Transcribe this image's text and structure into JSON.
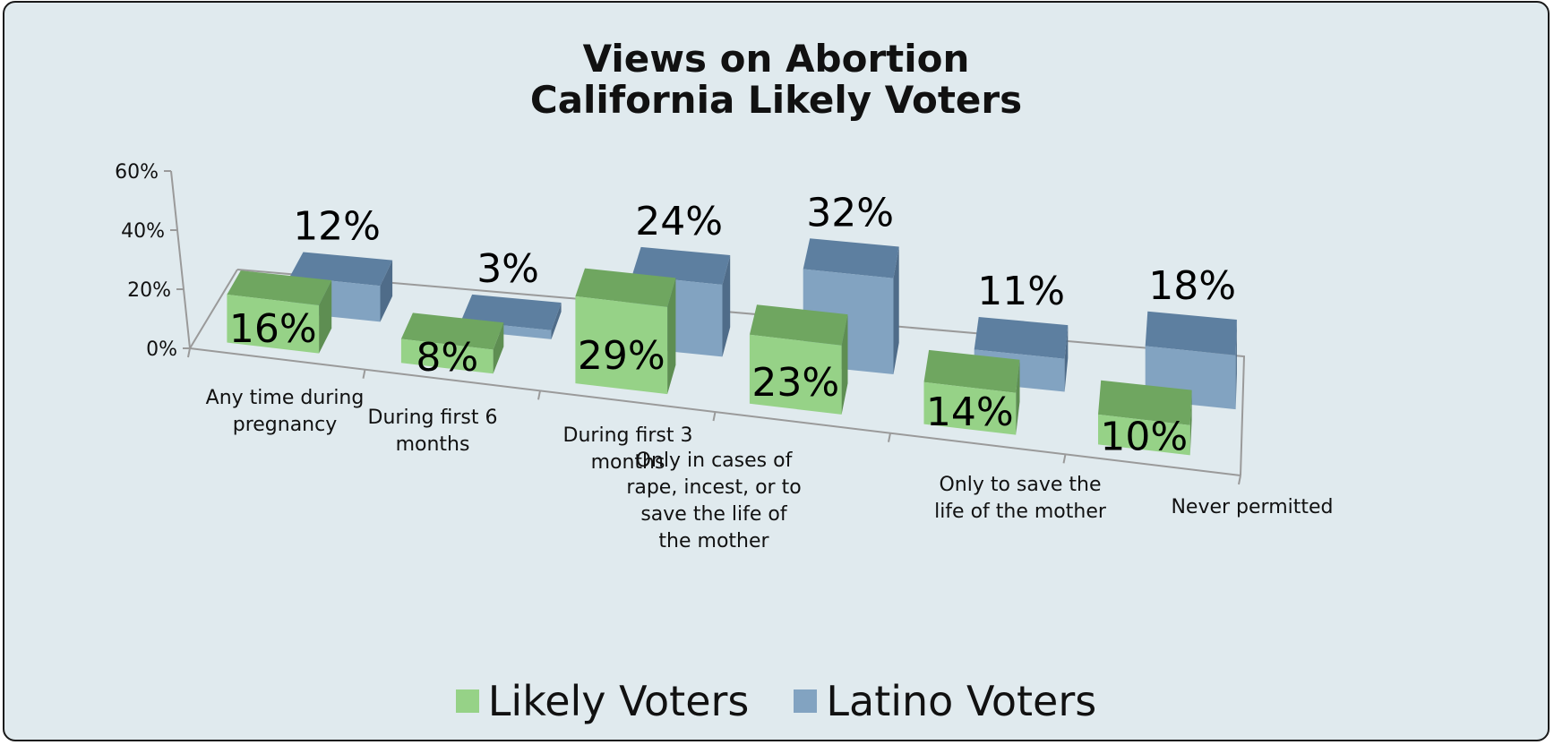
{
  "chart_data": {
    "type": "bar",
    "title_lines": [
      "Views on Abortion",
      "California Likely Voters"
    ],
    "categories": [
      [
        "Any time during",
        "pregnancy"
      ],
      [
        "During first 6",
        "months"
      ],
      [
        "During first 3",
        "months"
      ],
      [
        "Only in cases of",
        "rape, incest, or to",
        "save the life of",
        "the mother"
      ],
      [
        "Only to save the",
        "life of the mother"
      ],
      [
        "Never permitted"
      ]
    ],
    "series": [
      {
        "name": "Likely Voters",
        "values": [
          16,
          8,
          29,
          23,
          14,
          10
        ],
        "labels": [
          "16%",
          "8%",
          "29%",
          "23%",
          "14%",
          "10%"
        ]
      },
      {
        "name": "Latino Voters",
        "values": [
          12,
          3,
          24,
          32,
          11,
          18
        ],
        "labels": [
          "12%",
          "3%",
          "24%",
          "32%",
          "11%",
          "18%"
        ]
      }
    ],
    "y_ticks": [
      "0%",
      "20%",
      "40%",
      "60%"
    ],
    "ylim": [
      0,
      60
    ],
    "grid": false,
    "legend_position": "bottom",
    "colors": {
      "likely_front": "#96d287",
      "likely_top": "#6fa660",
      "likely_side": "#5e8e52",
      "latino_front": "#82a3c1",
      "latino_top": "#5d7fa0",
      "latino_side": "#4f6c89",
      "background": "#e0eaee",
      "axis": "#9a9a9a"
    }
  }
}
